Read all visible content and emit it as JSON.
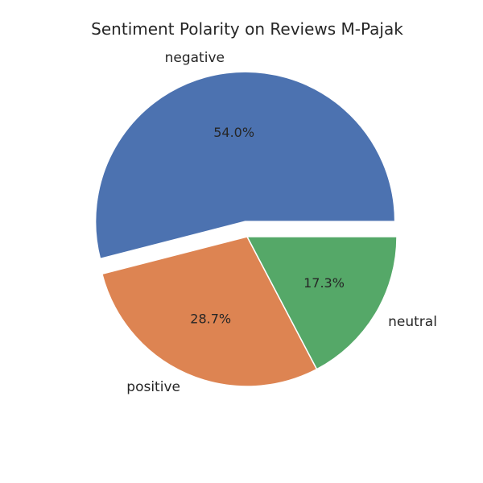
{
  "chart_data": {
    "type": "pie",
    "title": "Sentiment Polarity on Reviews M-Pajak",
    "slices": [
      {
        "label": "negative",
        "value": 54.0,
        "pct_label": "54.0%",
        "color": "#4c72b0",
        "exploded": true
      },
      {
        "label": "positive",
        "value": 28.7,
        "pct_label": "28.7%",
        "color": "#dd8452",
        "exploded": false
      },
      {
        "label": "neutral",
        "value": 17.3,
        "pct_label": "17.3%",
        "color": "#55a868",
        "exploded": false
      }
    ],
    "start_angle_deg": 0,
    "direction": "counterclockwise"
  }
}
